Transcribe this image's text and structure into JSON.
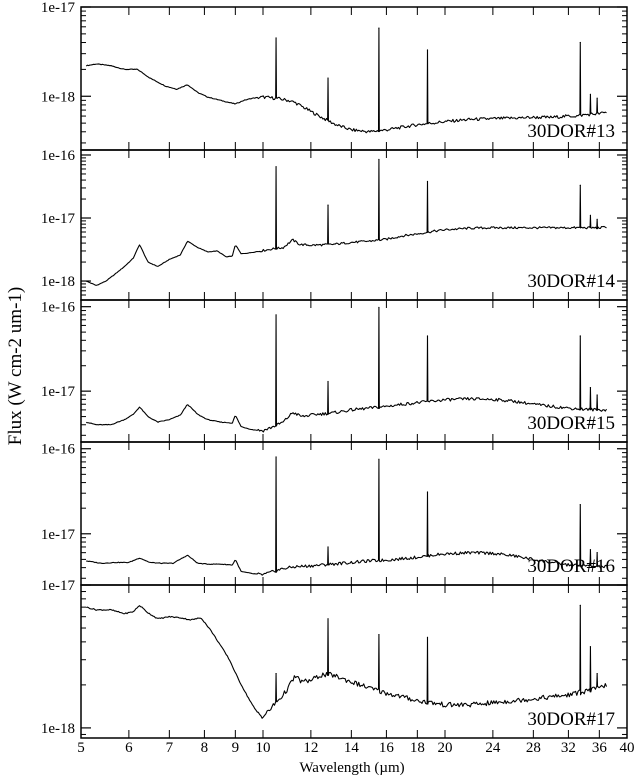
{
  "chart_data": {
    "type": "line",
    "xlabel": "Wavelength (µm)",
    "ylabel": "Flux (W cm-2 um-1)",
    "xscale": "log",
    "xlim": [
      5,
      40
    ],
    "x_ticks": [
      5,
      6,
      7,
      8,
      9,
      10,
      12,
      14,
      16,
      18,
      20,
      24,
      28,
      32,
      36,
      40
    ],
    "yscale": "log",
    "grid": false,
    "legend": "none",
    "line_color": "#000000",
    "panels": [
      {
        "label": "30DOR#13",
        "ylim": [
          2.5e-19,
          1e-17
        ],
        "y_ticks": [
          {
            "value": 1e-17,
            "label": "1e-17"
          },
          {
            "value": 1e-18,
            "label": "1e-18"
          }
        ],
        "series": [
          {
            "x": [
              5.1,
              5.3,
              5.6,
              5.9,
              6.2,
              6.5,
              6.9,
              7.2,
              7.5,
              7.8,
              8.1,
              8.5,
              8.8,
              9.0,
              9.3,
              9.6,
              10.0,
              10.5,
              11.0,
              11.3,
              11.8,
              12.5,
              13.2,
              14.0,
              15.0,
              16.0,
              17.0,
              18.0,
              19.0,
              20.0,
              22.0,
              24.0,
              26.0,
              28.0,
              30.0,
              32.0,
              33.0,
              34.0,
              35.0,
              36.0,
              37.0
            ],
            "y": [
              2.2e-18,
              2.3e-18,
              2.2e-18,
              2e-18,
              2e-18,
              1.6e-18,
              1.3e-18,
              1.2e-18,
              1.35e-18,
              1.1e-18,
              9.8e-19,
              9e-19,
              8.5e-19,
              8.2e-19,
              9e-19,
              9.5e-19,
              9.8e-19,
              9.5e-19,
              9e-19,
              8.5e-19,
              7.2e-19,
              5.8e-19,
              4.8e-19,
              4.2e-19,
              4e-19,
              4.2e-19,
              4.5e-19,
              4.8e-19,
              5e-19,
              5.2e-19,
              5.5e-19,
              5.6e-19,
              5.7e-19,
              5.8e-19,
              5.8e-19,
              6e-19,
              6e-19,
              6.2e-19,
              6.3e-19,
              6.4e-19,
              6.6e-19
            ],
            "emission_lines": [
              {
                "x": 10.51,
                "y": 4.5e-18
              },
              {
                "x": 12.81,
                "y": 1.6e-18
              },
              {
                "x": 15.55,
                "y": 5.8e-18
              },
              {
                "x": 18.71,
                "y": 3.3e-18
              },
              {
                "x": 33.48,
                "y": 4e-18
              },
              {
                "x": 34.8,
                "y": 1.05e-18
              },
              {
                "x": 35.7,
                "y": 9.5e-19
              }
            ]
          }
        ]
      },
      {
        "label": "30DOR#14",
        "ylim": [
          5e-19,
          1.2e-16
        ],
        "y_ticks": [
          {
            "value": 1e-16,
            "label": "1e-16"
          },
          {
            "value": 1e-17,
            "label": "1e-17"
          },
          {
            "value": 1e-18,
            "label": "1e-18"
          }
        ],
        "series": [
          {
            "x": [
              5.1,
              5.3,
              5.5,
              5.7,
              5.9,
              6.1,
              6.25,
              6.45,
              6.7,
              7.0,
              7.3,
              7.5,
              7.8,
              8.1,
              8.4,
              8.7,
              8.9,
              9.0,
              9.2,
              9.5,
              9.9,
              10.3,
              10.8,
              11.2,
              11.5,
              12.0,
              13.0,
              14.0,
              15.0,
              16.0,
              17.0,
              18.0,
              19.0,
              20.0,
              22.0,
              24.0,
              26.0,
              28.0,
              30.0,
              32.0,
              34.0,
              36.0,
              37.0
            ],
            "y": [
              1e-18,
              8.5e-19,
              1e-18,
              1.3e-18,
              1.7e-18,
              2.3e-18,
              3.8e-18,
              2e-18,
              1.7e-18,
              2.2e-18,
              2.6e-18,
              4.3e-18,
              3.4e-18,
              2.9e-18,
              3e-18,
              2.4e-18,
              2.5e-18,
              3.8e-18,
              2.7e-18,
              2.8e-18,
              3e-18,
              3.2e-18,
              3.4e-18,
              4.5e-18,
              3.8e-18,
              3.7e-18,
              3.8e-18,
              4.1e-18,
              4.3e-18,
              4.6e-18,
              5.2e-18,
              5.6e-18,
              6.1e-18,
              6.5e-18,
              6.9e-18,
              7e-18,
              7e-18,
              7e-18,
              7e-18,
              7e-18,
              7e-18,
              7e-18,
              7.2e-18
            ],
            "emission_lines": [
              {
                "x": 10.51,
                "y": 6.5e-17
              },
              {
                "x": 12.81,
                "y": 1.6e-17
              },
              {
                "x": 15.55,
                "y": 8.5e-17
              },
              {
                "x": 18.71,
                "y": 3.8e-17
              },
              {
                "x": 33.48,
                "y": 3.3e-17
              },
              {
                "x": 34.8,
                "y": 1.1e-17
              },
              {
                "x": 35.7,
                "y": 9.5e-18
              }
            ]
          }
        ]
      },
      {
        "label": "30DOR#15",
        "ylim": [
          2.5e-18,
          1.2e-16
        ],
        "y_ticks": [
          {
            "value": 1e-16,
            "label": "1e-16"
          },
          {
            "value": 1e-17,
            "label": "1e-17"
          }
        ],
        "series": [
          {
            "x": [
              5.1,
              5.3,
              5.6,
              5.9,
              6.1,
              6.25,
              6.45,
              6.7,
              7.0,
              7.3,
              7.5,
              7.8,
              8.1,
              8.5,
              8.9,
              9.0,
              9.2,
              9.6,
              10.0,
              10.4,
              10.8,
              11.2,
              11.6,
              12.2,
              13.0,
              14.0,
              15.0,
              16.0,
              17.0,
              18.0,
              19.0,
              20.0,
              22.0,
              24.0,
              26.0,
              28.0,
              30.0,
              32.0,
              34.0,
              36.0,
              37.0
            ],
            "y": [
              4.3e-18,
              4e-18,
              4e-18,
              4.6e-18,
              5.3e-18,
              6.5e-18,
              5e-18,
              4.3e-18,
              4.6e-18,
              5.2e-18,
              7e-18,
              5.3e-18,
              4.6e-18,
              4.3e-18,
              4.2e-18,
              5.2e-18,
              3.8e-18,
              3.5e-18,
              3.4e-18,
              3.8e-18,
              4.3e-18,
              5.6e-18,
              5e-18,
              5.3e-18,
              5.5e-18,
              6e-18,
              6.3e-18,
              6.6e-18,
              7e-18,
              7.3e-18,
              7.6e-18,
              7.9e-18,
              8.1e-18,
              8e-18,
              7.6e-18,
              7e-18,
              6.6e-18,
              6.3e-18,
              6.1e-18,
              6e-18,
              6e-18
            ],
            "emission_lines": [
              {
                "x": 10.51,
                "y": 8e-17
              },
              {
                "x": 12.81,
                "y": 1.3e-17
              },
              {
                "x": 15.55,
                "y": 9.8e-17
              },
              {
                "x": 18.71,
                "y": 4.5e-17
              },
              {
                "x": 33.48,
                "y": 4.5e-17
              },
              {
                "x": 34.8,
                "y": 1.1e-17
              },
              {
                "x": 35.7,
                "y": 9e-18
              }
            ]
          }
        ]
      },
      {
        "label": "30DOR#16",
        "ylim": [
          2.5e-18,
          1.2e-16
        ],
        "y_ticks": [
          {
            "value": 1e-16,
            "label": "1e-16"
          },
          {
            "value": 1e-17,
            "label": "1e-17"
          }
        ],
        "series": [
          {
            "x": [
              5.1,
              5.4,
              5.7,
              6.0,
              6.25,
              6.5,
              6.8,
              7.1,
              7.5,
              7.8,
              8.1,
              8.5,
              8.9,
              9.0,
              9.2,
              9.6,
              10.0,
              10.4,
              10.8,
              11.3,
              12.0,
              13.0,
              14.0,
              15.0,
              16.0,
              17.0,
              18.0,
              19.0,
              20.0,
              22.0,
              24.0,
              26.0,
              28.0,
              30.0,
              32.0,
              34.0,
              36.0,
              37.0
            ],
            "y": [
              4.8e-18,
              4.5e-18,
              4.6e-18,
              4.6e-18,
              5.2e-18,
              4.6e-18,
              4.5e-18,
              4.5e-18,
              5.6e-18,
              4.5e-18,
              4.4e-18,
              4.4e-18,
              4.3e-18,
              5e-18,
              3.6e-18,
              3.4e-18,
              3.3e-18,
              3.6e-18,
              3.9e-18,
              4.1e-18,
              4.2e-18,
              4.4e-18,
              4.6e-18,
              4.8e-18,
              4.9e-18,
              5.1e-18,
              5.3e-18,
              5.6e-18,
              5.8e-18,
              6e-18,
              5.9e-18,
              5.5e-18,
              5e-18,
              4.6e-18,
              4.3e-18,
              4.2e-18,
              4.1e-18,
              4.1e-18
            ],
            "emission_lines": [
              {
                "x": 10.51,
                "y": 8e-17
              },
              {
                "x": 12.81,
                "y": 7e-18
              },
              {
                "x": 15.55,
                "y": 7.5e-17
              },
              {
                "x": 18.71,
                "y": 3.1e-17
              },
              {
                "x": 33.48,
                "y": 2.2e-17
              },
              {
                "x": 34.8,
                "y": 6.5e-18
              },
              {
                "x": 35.7,
                "y": 6e-18
              }
            ]
          }
        ]
      },
      {
        "label": "30DOR#17",
        "ylim": [
          8.5e-19,
          1e-17
        ],
        "y_ticks": [
          {
            "value": 1e-17,
            "label": "1e-17"
          },
          {
            "value": 1e-18,
            "label": "1e-18"
          }
        ],
        "series": [
          {
            "x": [
              5.1,
              5.3,
              5.6,
              5.9,
              6.1,
              6.25,
              6.45,
              6.7,
              7.0,
              7.3,
              7.6,
              7.9,
              8.2,
              8.5,
              8.8,
              9.1,
              9.4,
              9.7,
              9.85,
              10.0,
              10.2,
              10.5,
              10.8,
              11.0,
              11.3,
              11.6,
              12.0,
              12.5,
              13.0,
              14.0,
              15.0,
              16.0,
              17.0,
              18.0,
              19.0,
              20.0,
              22.0,
              24.0,
              26.0,
              28.0,
              30.0,
              32.0,
              34.0,
              36.0,
              37.0
            ],
            "y": [
              7e-18,
              6.7e-18,
              6.7e-18,
              6.3e-18,
              6.5e-18,
              7.2e-18,
              6.4e-18,
              5.8e-18,
              6e-18,
              5.9e-18,
              5.7e-18,
              5.9e-18,
              4.8e-18,
              3.8e-18,
              3e-18,
              2.2e-18,
              1.7e-18,
              1.35e-18,
              1.25e-18,
              1.2e-18,
              1.3e-18,
              1.5e-18,
              1.7e-18,
              1.9e-18,
              2.3e-18,
              2.1e-18,
              2.15e-18,
              2.35e-18,
              2.35e-18,
              2.1e-18,
              1.9e-18,
              1.75e-18,
              1.65e-18,
              1.55e-18,
              1.5e-18,
              1.45e-18,
              1.45e-18,
              1.5e-18,
              1.55e-18,
              1.6e-18,
              1.65e-18,
              1.7e-18,
              1.8e-18,
              1.9e-18,
              2e-18
            ],
            "emission_lines": [
              {
                "x": 10.51,
                "y": 2.4e-18
              },
              {
                "x": 12.81,
                "y": 5.8e-18
              },
              {
                "x": 15.55,
                "y": 4.5e-18
              },
              {
                "x": 18.71,
                "y": 4.3e-18
              },
              {
                "x": 33.48,
                "y": 7.2e-18
              },
              {
                "x": 34.8,
                "y": 3.7e-18
              },
              {
                "x": 35.7,
                "y": 2.4e-18
              }
            ]
          }
        ]
      }
    ]
  }
}
